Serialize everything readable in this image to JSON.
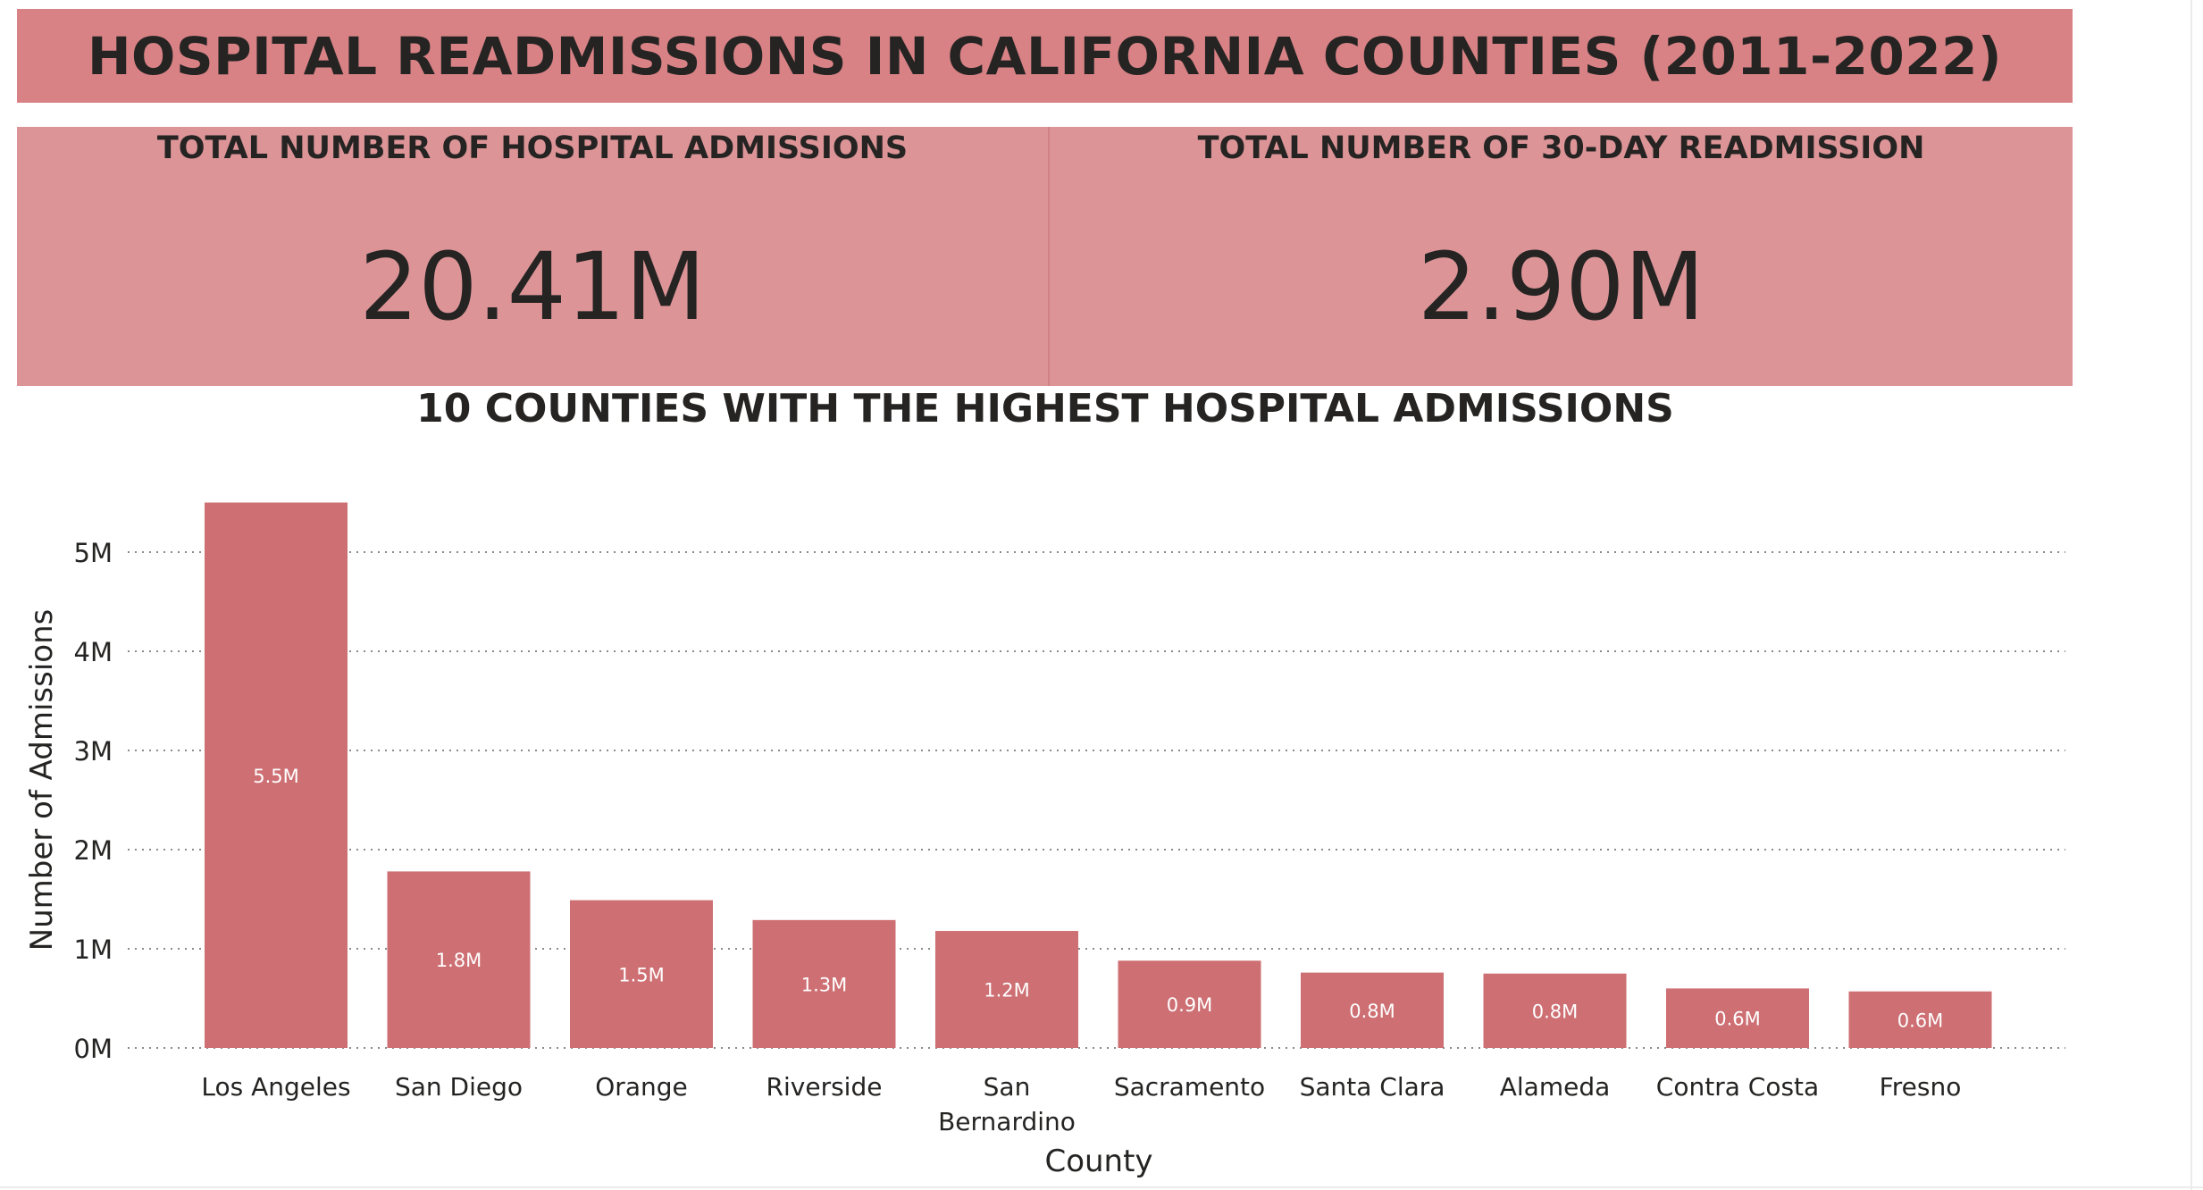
{
  "header": {
    "title": "HOSPITAL READMISSIONS IN CALIFORNIA COUNTIES (2011-2022)"
  },
  "kpis": [
    {
      "label": "TOTAL NUMBER OF HOSPITAL ADMISSIONS",
      "value": "20.41M"
    },
    {
      "label": "TOTAL NUMBER OF 30-DAY READMISSION",
      "value": "2.90M"
    }
  ],
  "colors": {
    "banner": "#d88285",
    "kpi_background": "#dc9497",
    "bar": "#cd6f73"
  },
  "chart_data": {
    "type": "bar",
    "title": "10 COUNTIES WITH THE HIGHEST HOSPITAL ADMISSIONS",
    "xlabel": "County",
    "ylabel": "Number of Admissions",
    "categories": [
      "Los Angeles",
      "San Diego",
      "Orange",
      "Riverside",
      "San Bernardino",
      "Sacramento",
      "Santa Clara",
      "Alameda",
      "Contra Costa",
      "Fresno"
    ],
    "values": [
      5.5,
      1.78,
      1.49,
      1.29,
      1.18,
      0.88,
      0.76,
      0.75,
      0.6,
      0.57
    ],
    "value_labels": [
      "5.5M",
      "1.8M",
      "1.5M",
      "1.3M",
      "1.2M",
      "0.9M",
      "0.8M",
      "0.8M",
      "0.6M",
      "0.6M"
    ],
    "unit": "M",
    "yticks": [
      "0M",
      "1M",
      "2M",
      "3M",
      "4M",
      "5M"
    ],
    "ylim": [
      0,
      5.5
    ],
    "grid": true,
    "gridline_style": "dotted",
    "legend": "none"
  }
}
